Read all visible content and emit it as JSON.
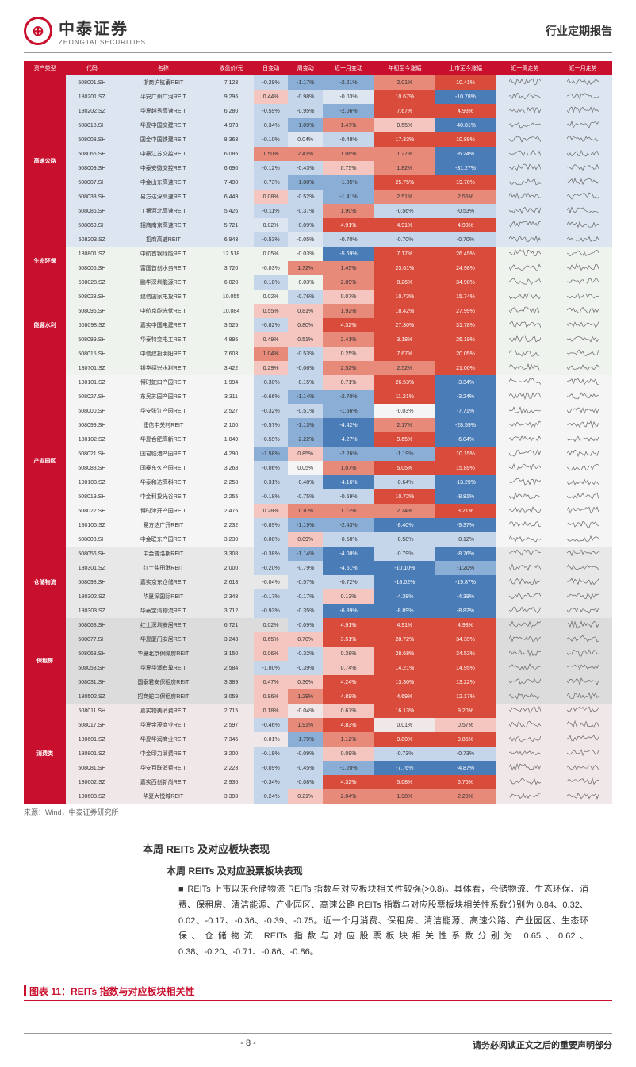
{
  "header": {
    "logo_cn": "中泰证券",
    "logo_en": "ZHONGTAI SECURITIES",
    "logo_glyph": "⊕",
    "report_type": "行业定期报告"
  },
  "table": {
    "columns": [
      "资产类型",
      "代码",
      "名称",
      "收盘价/元",
      "日变动",
      "周变动",
      "近一月变动",
      "年初至今涨幅",
      "上市至今涨幅",
      "近一周走势",
      "近一月走势"
    ],
    "heat_colors": {
      "pos_hi": "#d94b3a",
      "pos_md": "#e88a7a",
      "pos_lo": "#f5c6bf",
      "neg_hi": "#4a7db8",
      "neg_md": "#8aaed6",
      "neg_lo": "#c5d6eb",
      "neutral": ""
    },
    "sections": [
      {
        "name": "高速公路",
        "rows": [
          [
            "508001.SH",
            "浙商沪杭甬REIT",
            "7.123",
            "-0.29%",
            "-1.17%",
            "-2.21%",
            "2.01%",
            "10.41%"
          ],
          [
            "180201.SZ",
            "平安广州广河REIT",
            "9.296",
            "0.44%",
            "-0.98%",
            "-0.03%",
            "10.67%",
            "-10.78%"
          ],
          [
            "180202.SZ",
            "华夏越秀高速REIT",
            "6.280",
            "-0.59%",
            "-0.95%",
            "-2.06%",
            "7.67%",
            "4.98%"
          ],
          [
            "508018.SH",
            "华夏中国交建REIT",
            "4.973",
            "-0.34%",
            "-1.09%",
            "1.47%",
            "0.55%",
            "-40.81%"
          ],
          [
            "508008.SH",
            "国金中国铁建REIT",
            "8.363",
            "-0.10%",
            "0.04%",
            "-0.48%",
            "17.33%",
            "10.89%"
          ],
          [
            "508066.SH",
            "中泰江苏交控REIT",
            "6.085",
            "1.50%",
            "2.41%",
            "1.06%",
            "1.27%",
            "-6.24%"
          ],
          [
            "508009.SH",
            "中泰安徽交控REIT",
            "6.690",
            "-0.12%",
            "-0.43%",
            "0.75%",
            "1.82%",
            "-31.27%"
          ],
          [
            "508007.SH",
            "中金山东高速REIT",
            "7.490",
            "-0.73%",
            "-1.08%",
            "-1.05%",
            "25.75%",
            "19.70%"
          ],
          [
            "508033.SH",
            "易方达深高速REIT",
            "6.449",
            "0.08%",
            "-0.52%",
            "-1.41%",
            "2.51%",
            "2.56%"
          ],
          [
            "508086.SH",
            "工银河北高速REIT",
            "5.426",
            "-0.11%",
            "-0.37%",
            "1.90%",
            "-0.56%",
            "-0.53%"
          ],
          [
            "508069.SH",
            "招商南京高速REIT",
            "5.721",
            "0.02%",
            "-0.09%",
            "4.91%",
            "4.91%",
            "4.93%"
          ],
          [
            "508203.SZ",
            "招商高速REIT",
            "6.943",
            "-0.53%",
            "-0.05%",
            "-0.70%",
            "-0.70%",
            "-0.70%"
          ]
        ]
      },
      {
        "name": "生态环保",
        "rows": [
          [
            "180801.SZ",
            "中航首钢绿能REIT",
            "12.518",
            "0.05%",
            "-0.03%",
            "-5.69%",
            "7.17%",
            "26.45%"
          ],
          [
            "508006.SH",
            "富国首创水务REIT",
            "3.720",
            "-0.03%",
            "1.72%",
            "1.45%",
            "23.61%",
            "24.98%"
          ]
        ]
      },
      {
        "name": "能源水利",
        "rows": [
          [
            "508028.SZ",
            "鹏华深圳能源REIT",
            "6.020",
            "-0.18%",
            "-0.03%",
            "2.89%",
            "8.26%",
            "34.98%"
          ],
          [
            "508028.SH",
            "建信国家电投REIT",
            "10.055",
            "0.02%",
            "-0.76%",
            "0.07%",
            "10.73%",
            "15.74%"
          ],
          [
            "508096.SH",
            "中航京能光伏REIT",
            "10.084",
            "0.55%",
            "0.81%",
            "1.92%",
            "18.42%",
            "27.99%"
          ],
          [
            "508098.SZ",
            "嘉实中国电建REIT",
            "3.525",
            "-0.82%",
            "0.80%",
            "4.32%",
            "27.30%",
            "31.78%"
          ],
          [
            "508089.SH",
            "华泰特变电工REIT",
            "4.895",
            "0.49%",
            "0.51%",
            "2.41%",
            "3.18%",
            "26.19%"
          ],
          [
            "508015.SH",
            "中信建投明阳REIT",
            "7.603",
            "1.04%",
            "-0.53%",
            "0.25%",
            "7.67%",
            "20.05%"
          ],
          [
            "180701.SZ",
            "银华绍兴水利REIT",
            "3.422",
            "0.29%",
            "-0.06%",
            "2.52%",
            "2.52%",
            "21.00%"
          ]
        ]
      },
      {
        "name": "产业园区",
        "rows": [
          [
            "180101.SZ",
            "博时蛇口产园REIT",
            "1.994",
            "-0.30%",
            "-0.15%",
            "0.71%",
            "26.53%",
            "-3.34%"
          ],
          [
            "508027.SH",
            "东吴苏园产园REIT",
            "3.311",
            "-0.66%",
            "-1.14%",
            "-2.70%",
            "11.21%",
            "-3.24%"
          ],
          [
            "508000.SH",
            "华安张江产园REIT",
            "2.527",
            "-0.32%",
            "-0.51%",
            "-1.56%",
            "-0.03%",
            "-7.71%"
          ],
          [
            "508099.SH",
            "建信中关村REIT",
            "2.100",
            "-0.57%",
            "-1.13%",
            "-4.42%",
            "2.17%",
            "-28.59%"
          ],
          [
            "180102.SZ",
            "华夏合肥高新REIT",
            "1.849",
            "-0.59%",
            "-2.22%",
            "-4.27%",
            "9.65%",
            "-6.04%"
          ],
          [
            "508021.SH",
            "国君临港产园REIT",
            "4.290",
            "-1.58%",
            "0.85%",
            "-2.26%",
            "-1.19%",
            "10.15%"
          ],
          [
            "508088.SH",
            "国泰东久产园REIT",
            "3.268",
            "-0.06%",
            "0.05%",
            "1.07%",
            "5.05%",
            "15.89%"
          ],
          [
            "180103.SZ",
            "华泰和达高科REIT",
            "2.258",
            "-0.31%",
            "-0.48%",
            "-4.16%",
            "-0.64%",
            "-13.29%"
          ],
          [
            "508019.SH",
            "中金科投光谷REIT",
            "2.255",
            "-0.18%",
            "-0.75%",
            "-0.59%",
            "10.72%",
            "-8.81%"
          ],
          [
            "508022.SH",
            "博时津开产园REIT",
            "2.475",
            "0.28%",
            "1.10%",
            "1.73%",
            "2.74%",
            "3.21%"
          ],
          [
            "180105.SZ",
            "易方达广开REIT",
            "2.232",
            "-0.89%",
            "-1.19%",
            "-2.43%",
            "-8.40%",
            "-9.37%"
          ],
          [
            "508003.SH",
            "中金联东产园REIT",
            "3.230",
            "-0.08%",
            "0.09%",
            "-0.58%",
            "-0.58%",
            "-0.12%"
          ]
        ]
      },
      {
        "name": "仓储物流",
        "rows": [
          [
            "508056.SH",
            "中金普洛斯REIT",
            "3.308",
            "-0.38%",
            "-1.14%",
            "-4.08%",
            "-0.79%",
            "-8.76%"
          ],
          [
            "180301.SZ",
            "红土盐田港REIT",
            "2.000",
            "-0.20%",
            "-0.79%",
            "-4.51%",
            "-10.10%",
            "-1.20%"
          ],
          [
            "508098.SH",
            "嘉实京东仓储REIT",
            "2.613",
            "-0.04%",
            "-0.57%",
            "-0.72%",
            "-18.02%",
            "-19.87%"
          ],
          [
            "180302.SZ",
            "华夏深国际REIT",
            "2.348",
            "-0.17%",
            "-0.17%",
            "0.13%",
            "-4.38%",
            "-4.38%"
          ],
          [
            "180303.SZ",
            "华泰宝湾物流REIT",
            "3.712",
            "-0.93%",
            "-0.35%",
            "-6.89%",
            "-8.89%",
            "-8.82%"
          ]
        ]
      },
      {
        "name": "保租房",
        "rows": [
          [
            "508068.SH",
            "红土深圳安居REIT",
            "6.721",
            "0.02%",
            "-0.09%",
            "4.91%",
            "4.91%",
            "4.93%"
          ],
          [
            "508077.SH",
            "华夏厦门安居REIT",
            "3.243",
            "0.65%",
            "0.70%",
            "3.51%",
            "28.72%",
            "34.39%"
          ],
          [
            "508068.SH",
            "华夏北京保障房REIT",
            "3.150",
            "0.06%",
            "-0.32%",
            "0.38%",
            "28.68%",
            "34.53%"
          ],
          [
            "508058.SH",
            "华夏华润有巢REIT",
            "2.584",
            "-1.00%",
            "-0.39%",
            "0.74%",
            "14.21%",
            "14.95%"
          ],
          [
            "508031.SH",
            "国泰君安保租房REIT",
            "3.389",
            "0.47%",
            "0.36%",
            "4.24%",
            "13.30%",
            "13.22%"
          ],
          [
            "180502.SZ",
            "招商蛇口保租房REIT",
            "3.059",
            "0.96%",
            "1.29%",
            "4.89%",
            "4.69%",
            "12.17%"
          ]
        ]
      },
      {
        "name": "消费类",
        "rows": [
          [
            "508011.SH",
            "嘉实物美消费REIT",
            "2.715",
            "0.18%",
            "-0.04%",
            "0.67%",
            "16.13%",
            "9.20%"
          ],
          [
            "508017.SH",
            "华夏金茂商业REIT",
            "2.597",
            "-0.46%",
            "1.91%",
            "4.83%",
            "0.01%",
            "0.57%"
          ],
          [
            "180601.SZ",
            "华夏华润商业REIT",
            "7.345",
            "-0.01%",
            "-1.79%",
            "1.12%",
            "9.80%",
            "9.85%"
          ],
          [
            "180801.SZ",
            "中金印力消费REIT",
            "3.200",
            "-0.19%",
            "-0.09%",
            "0.09%",
            "-0.73%",
            "-0.73%"
          ],
          [
            "508081.SH",
            "华安百联消费REIT",
            "2.223",
            "-0.09%",
            "-0.45%",
            "-1.20%",
            "-7.76%",
            "-4.87%"
          ],
          [
            "180602.SZ",
            "嘉实西创新尚REIT",
            "2.936",
            "-0.34%",
            "-0.08%",
            "4.32%",
            "5.08%",
            "6.76%"
          ],
          [
            "180603.SZ",
            "华夏大悦城REIT",
            "3.398",
            "-0.24%",
            "0.21%",
            "2.04%",
            "1.98%",
            "2.20%"
          ]
        ]
      }
    ]
  },
  "source": "来源：Wind，中泰证券研究所",
  "section": {
    "title": "本周 REITs 及对应板块表现",
    "subtitle": "本周 REITs 及对应股票板块表现",
    "body": "REITs 上市以来仓储物流 REITs 指数与对应板块相关性较强(>0.8)。具体看，仓储物流、生态环保、消费、保租房、清洁能源、产业园区、高速公路 REITs 指数与对应股票板块相关性系数分别为 0.84、0.32、0.02、-0.17、-0.36、-0.39、-0.75。近一个月消费、保租房、清洁能源、高速公路、产业园区、生态环保、仓储物流 REITs 指数与对应股票板块相关性系数分别为 0.65、0.62、0.38、-0.20、-0.71、-0.86、-0.86。"
  },
  "chart_title": "图表 11：REITs 指数与对应板块相关性",
  "footer": {
    "page": "- 8 -",
    "disclaimer": "请务必阅读正文之后的重要声明部分"
  }
}
